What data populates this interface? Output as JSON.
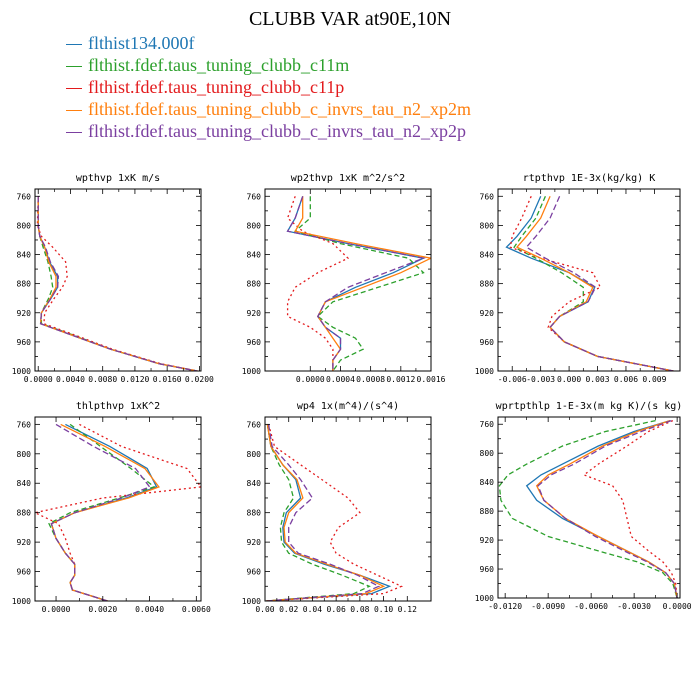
{
  "title": "CLUBB VAR at90E,10N",
  "legend": [
    {
      "label": "flthist134.000f",
      "color": "#1f77b4"
    },
    {
      "label": "flthist.fdef.taus_tuning_clubb_c11m",
      "color": "#2ca02c"
    },
    {
      "label": "flthist.fdef.taus_tuning_clubb_c11p",
      "color": "#e31a1c"
    },
    {
      "label": "flthist.fdef.taus_tuning_clubb_c_invrs_tau_n2_xp2m",
      "color": "#ff7f0e"
    },
    {
      "label": "flthist.fdef.taus_tuning_clubb_c_invrs_tau_n2_xp2p",
      "color": "#7b3fa0"
    }
  ],
  "chart_data": [
    {
      "type": "line",
      "title": "wpthvp  1xK m/s",
      "xlim": [
        -0.0004,
        0.0202
      ],
      "ylim": [
        1000,
        750
      ],
      "xticks": [
        0.0,
        0.004,
        0.008,
        0.012,
        0.016,
        0.02
      ],
      "xtick_labels": [
        "0.0000",
        "0.0040",
        "0.0080",
        "0.0120",
        "0.0160",
        "0.0200"
      ],
      "yticks": [
        760,
        800,
        840,
        880,
        920,
        960,
        1000
      ],
      "y": [
        760,
        800,
        815,
        830,
        850,
        870,
        885,
        900,
        920,
        935,
        950,
        970,
        990,
        1000
      ],
      "series": [
        {
          "values": [
            0.0,
            0.0,
            0.0002,
            0.0008,
            0.0014,
            0.0024,
            0.0024,
            0.0016,
            0.0004,
            0.0003,
            0.004,
            0.009,
            0.015,
            0.0197
          ]
        },
        {
          "values": [
            0.0,
            0.0,
            0.0002,
            0.0006,
            0.0012,
            0.0016,
            0.0018,
            0.0013,
            0.0004,
            0.0004,
            0.0042,
            0.009,
            0.015,
            0.0197
          ]
        },
        {
          "values": [
            0.0,
            -0.0001,
            0.0004,
            0.0018,
            0.0034,
            0.0036,
            0.003,
            0.002,
            0.0008,
            0.0007,
            0.0044,
            0.0092,
            0.0152,
            0.0198
          ]
        },
        {
          "values": [
            0.0,
            0.0,
            0.0002,
            0.0008,
            0.0013,
            0.0022,
            0.0022,
            0.0015,
            0.0004,
            0.0003,
            0.004,
            0.009,
            0.015,
            0.0197
          ]
        },
        {
          "values": [
            0.0,
            0.0,
            0.0002,
            0.0009,
            0.0015,
            0.0025,
            0.0024,
            0.0016,
            0.0004,
            0.0003,
            0.004,
            0.009,
            0.015,
            0.0197
          ]
        }
      ]
    },
    {
      "type": "line",
      "title": "wp2thvp  1xK m^2/s^2",
      "xlim": [
        -0.0006,
        0.0016
      ],
      "ylim": [
        1000,
        750
      ],
      "xticks": [
        0.0,
        0.0004,
        0.0008,
        0.0012,
        0.0016
      ],
      "xtick_labels": [
        "0.0000",
        "0.0004",
        "0.0008",
        "0.0012",
        "0.0016"
      ],
      "yticks": [
        760,
        800,
        840,
        880,
        920,
        960,
        1000
      ],
      "y": [
        760,
        790,
        808,
        825,
        845,
        865,
        885,
        905,
        925,
        940,
        955,
        970,
        985,
        1000
      ],
      "series": [
        {
          "values": [
            -0.0001,
            -0.0002,
            -0.0003,
            0.0005,
            0.0015,
            0.0011,
            0.0006,
            0.0002,
            0.0001,
            0.0002,
            0.0004,
            0.0004,
            0.0003,
            0.0003
          ]
        },
        {
          "values": [
            0.0,
            0.0,
            -0.0002,
            0.0004,
            0.0013,
            0.0015,
            0.0009,
            0.0003,
            0.0001,
            0.0003,
            0.0006,
            0.0007,
            0.0004,
            0.0003
          ]
        },
        {
          "values": [
            -0.0002,
            -0.0003,
            -0.0001,
            0.0003,
            0.0005,
            0.0001,
            -0.0002,
            -0.0003,
            -0.0003,
            0.0,
            0.0002,
            0.0003,
            0.0003,
            0.0003
          ]
        },
        {
          "values": [
            -0.0001,
            -0.0001,
            -0.0002,
            0.0006,
            0.0016,
            0.0012,
            0.0007,
            0.0002,
            0.0001,
            0.0002,
            0.0003,
            0.0004,
            0.0003,
            0.0003
          ]
        },
        {
          "values": [
            -0.0001,
            -0.0002,
            -0.0003,
            0.0005,
            0.0015,
            0.001,
            0.0005,
            0.0002,
            0.0001,
            0.0002,
            0.0004,
            0.0004,
            0.0003,
            0.0003
          ]
        }
      ]
    },
    {
      "type": "line",
      "title": "rtpthvp  1E-3x(kg/kg) K",
      "xlim": [
        -0.0075,
        0.0117
      ],
      "ylim": [
        1000,
        750
      ],
      "xticks": [
        -0.006,
        -0.003,
        0.0,
        0.003,
        0.006,
        0.009
      ],
      "xtick_labels": [
        "-0.006",
        "-0.003",
        "0.000",
        "0.003",
        "0.006",
        "0.009"
      ],
      "yticks": [
        760,
        800,
        840,
        880,
        920,
        960,
        1000
      ],
      "y": [
        760,
        790,
        815,
        830,
        845,
        865,
        885,
        905,
        925,
        940,
        960,
        980,
        1000
      ],
      "series": [
        {
          "values": [
            -0.003,
            -0.004,
            -0.0055,
            -0.0066,
            -0.004,
            0.0,
            0.0027,
            0.002,
            -0.001,
            -0.002,
            -0.0005,
            0.003,
            0.011
          ]
        },
        {
          "values": [
            -0.0025,
            -0.0035,
            -0.005,
            -0.0058,
            -0.0035,
            -0.0008,
            0.0015,
            0.0015,
            -0.001,
            -0.002,
            -0.0005,
            0.003,
            0.011
          ]
        },
        {
          "values": [
            -0.004,
            -0.005,
            -0.006,
            -0.0062,
            -0.003,
            0.0025,
            0.0033,
            0.0,
            -0.0018,
            -0.0022,
            -0.0005,
            0.003,
            0.011
          ]
        },
        {
          "values": [
            -0.002,
            -0.003,
            -0.0045,
            -0.0055,
            -0.003,
            0.0,
            0.0025,
            0.0018,
            -0.001,
            -0.002,
            -0.0005,
            0.003,
            0.011
          ]
        },
        {
          "values": [
            -0.001,
            -0.002,
            -0.0035,
            -0.0045,
            -0.0025,
            0.0005,
            0.0028,
            0.002,
            -0.001,
            -0.002,
            -0.0005,
            0.003,
            0.011
          ]
        }
      ]
    },
    {
      "type": "line",
      "title": "thlpthvp  1xK^2",
      "xlim": [
        -0.0009,
        0.0062
      ],
      "ylim": [
        1000,
        750
      ],
      "xticks": [
        0.0,
        0.002,
        0.004,
        0.006
      ],
      "xtick_labels": [
        "0.0000",
        "0.0020",
        "0.0040",
        "0.0060"
      ],
      "yticks": [
        760,
        800,
        840,
        880,
        920,
        960,
        1000
      ],
      "y": [
        760,
        790,
        820,
        845,
        860,
        880,
        895,
        915,
        935,
        950,
        965,
        975,
        985,
        1000
      ],
      "series": [
        {
          "values": [
            0.0004,
            0.0023,
            0.0039,
            0.0043,
            0.003,
            0.0008,
            -0.0002,
            0.0,
            0.0004,
            0.0008,
            0.0008,
            0.0006,
            0.0007,
            0.0022
          ]
        },
        {
          "values": [
            0.0006,
            0.0019,
            0.0032,
            0.0042,
            0.0027,
            0.0006,
            -0.0003,
            0.0,
            0.0004,
            0.0008,
            0.0008,
            0.0006,
            0.0007,
            0.0022
          ]
        },
        {
          "values": [
            0.001,
            0.0028,
            0.0056,
            0.0062,
            0.002,
            -0.0009,
            0.0001,
            0.0004,
            0.0006,
            0.0008,
            0.0008,
            0.0006,
            0.0007,
            0.0022
          ]
        },
        {
          "values": [
            0.0002,
            0.0021,
            0.0038,
            0.0044,
            0.0031,
            0.0008,
            -0.0002,
            0.0,
            0.0004,
            0.0008,
            0.0008,
            0.0006,
            0.0007,
            0.0022
          ]
        },
        {
          "values": [
            0.0,
            0.0016,
            0.0034,
            0.004,
            0.0028,
            0.0008,
            -0.0002,
            0.0,
            0.0004,
            0.0008,
            0.0008,
            0.0006,
            0.0007,
            0.0022
          ]
        }
      ]
    },
    {
      "type": "line",
      "title": "wp4  1x(m^4)/(s^4)",
      "xlim": [
        0.0,
        0.14
      ],
      "ylim": [
        1000,
        750
      ],
      "xticks": [
        0.0,
        0.02,
        0.04,
        0.06,
        0.08,
        0.1,
        0.12
      ],
      "xtick_labels": [
        "0.00",
        "0.02",
        "0.04",
        "0.06",
        "0.08",
        "0.10",
        "0.12"
      ],
      "yticks": [
        760,
        800,
        840,
        880,
        920,
        960,
        1000
      ],
      "y": [
        760,
        790,
        815,
        835,
        860,
        880,
        900,
        920,
        935,
        950,
        965,
        980,
        990,
        1000
      ],
      "series": [
        {
          "values": [
            0.002,
            0.005,
            0.015,
            0.026,
            0.03,
            0.018,
            0.015,
            0.016,
            0.025,
            0.05,
            0.08,
            0.105,
            0.09,
            0.001
          ]
        },
        {
          "values": [
            0.002,
            0.005,
            0.012,
            0.02,
            0.024,
            0.016,
            0.013,
            0.014,
            0.02,
            0.04,
            0.065,
            0.088,
            0.075,
            0.001
          ]
        },
        {
          "values": [
            0.003,
            0.008,
            0.03,
            0.048,
            0.07,
            0.08,
            0.062,
            0.055,
            0.06,
            0.075,
            0.095,
            0.115,
            0.1,
            0.001
          ]
        },
        {
          "values": [
            0.002,
            0.005,
            0.015,
            0.027,
            0.032,
            0.02,
            0.016,
            0.017,
            0.026,
            0.052,
            0.08,
            0.1,
            0.085,
            0.001
          ]
        },
        {
          "values": [
            0.003,
            0.006,
            0.02,
            0.03,
            0.04,
            0.026,
            0.02,
            0.02,
            0.028,
            0.055,
            0.078,
            0.096,
            0.082,
            0.001
          ]
        }
      ]
    },
    {
      "type": "line",
      "title": "wprtpthlp  1-E-3x(m kg K)/(s kg)",
      "xlim": [
        -0.0125,
        0.0002
      ],
      "ylim": [
        1000,
        750
      ],
      "xticks": [
        -0.012,
        -0.009,
        -0.006,
        -0.003,
        0.0
      ],
      "xtick_labels": [
        "-0.0120",
        "-0.0090",
        "-0.0060",
        "-0.0030",
        "0.0000"
      ],
      "yticks": [
        760,
        800,
        840,
        880,
        920,
        960,
        1000
      ],
      "y": [
        755,
        770,
        790,
        815,
        830,
        845,
        865,
        890,
        915,
        935,
        950,
        965,
        980,
        1000
      ],
      "series": [
        {
          "values": [
            -0.0005,
            -0.003,
            -0.0055,
            -0.008,
            -0.0095,
            -0.0105,
            -0.0098,
            -0.008,
            -0.0055,
            -0.0035,
            -0.002,
            -0.0008,
            -0.0002,
            0.0
          ]
        },
        {
          "values": [
            -0.0015,
            -0.005,
            -0.008,
            -0.0105,
            -0.0118,
            -0.0124,
            -0.0123,
            -0.0115,
            -0.009,
            -0.0055,
            -0.0028,
            -0.001,
            -0.0003,
            0.0
          ]
        },
        {
          "values": [
            -0.0003,
            -0.002,
            -0.0035,
            -0.0055,
            -0.0065,
            -0.0045,
            -0.0038,
            -0.0035,
            -0.0032,
            -0.002,
            -0.001,
            -0.0004,
            -0.0001,
            0.0
          ]
        },
        {
          "values": [
            -0.0005,
            -0.0028,
            -0.0052,
            -0.0075,
            -0.009,
            -0.0098,
            -0.0093,
            -0.0078,
            -0.0055,
            -0.0035,
            -0.002,
            -0.0008,
            -0.0002,
            0.0
          ]
        },
        {
          "values": [
            -0.0004,
            -0.0025,
            -0.005,
            -0.0072,
            -0.0088,
            -0.0097,
            -0.0093,
            -0.0078,
            -0.0057,
            -0.0037,
            -0.0021,
            -0.0008,
            -0.0002,
            0.0
          ]
        }
      ]
    }
  ]
}
